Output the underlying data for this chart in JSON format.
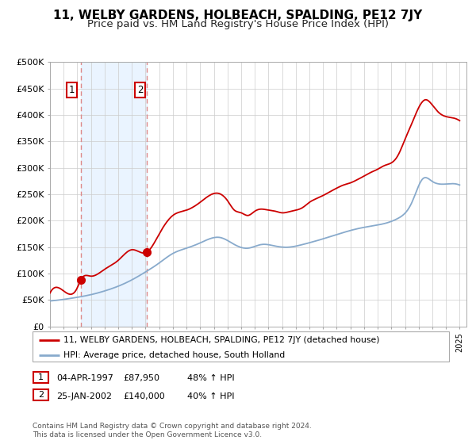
{
  "title": "11, WELBY GARDENS, HOLBEACH, SPALDING, PE12 7JY",
  "subtitle": "Price paid vs. HM Land Registry's House Price Index (HPI)",
  "ylim": [
    0,
    500000
  ],
  "yticks": [
    0,
    50000,
    100000,
    150000,
    200000,
    250000,
    300000,
    350000,
    400000,
    450000,
    500000
  ],
  "ytick_labels": [
    "£0",
    "£50K",
    "£100K",
    "£150K",
    "£200K",
    "£250K",
    "£300K",
    "£350K",
    "£400K",
    "£450K",
    "£500K"
  ],
  "xlim_start": 1995.0,
  "xlim_end": 2025.5,
  "sale1_date": 1997.25,
  "sale1_price": 87950,
  "sale2_date": 2002.07,
  "sale2_price": 140000,
  "legend_line1": "11, WELBY GARDENS, HOLBEACH, SPALDING, PE12 7JY (detached house)",
  "legend_line2": "HPI: Average price, detached house, South Holland",
  "footnote": "Contains HM Land Registry data © Crown copyright and database right 2024.\nThis data is licensed under the Open Government Licence v3.0.",
  "red_line_color": "#cc0000",
  "blue_line_color": "#88aacc",
  "sale_dot_color": "#cc0000",
  "vline_color": "#dd8888",
  "bg_shade_color": "#ddeeff",
  "grid_color": "#cccccc",
  "title_fontsize": 11,
  "subtitle_fontsize": 9.5,
  "hpi_keypoints": [
    [
      1995.0,
      48000
    ],
    [
      1996.0,
      51000
    ],
    [
      1997.0,
      55000
    ],
    [
      1998.0,
      60000
    ],
    [
      1999.0,
      67000
    ],
    [
      2000.0,
      76000
    ],
    [
      2001.0,
      88000
    ],
    [
      2002.0,
      103000
    ],
    [
      2003.0,
      120000
    ],
    [
      2004.0,
      138000
    ],
    [
      2005.0,
      148000
    ],
    [
      2006.0,
      158000
    ],
    [
      2007.5,
      168000
    ],
    [
      2008.5,
      155000
    ],
    [
      2009.5,
      148000
    ],
    [
      2010.5,
      155000
    ],
    [
      2011.5,
      152000
    ],
    [
      2012.5,
      150000
    ],
    [
      2013.5,
      155000
    ],
    [
      2014.5,
      162000
    ],
    [
      2015.5,
      170000
    ],
    [
      2016.5,
      178000
    ],
    [
      2017.5,
      185000
    ],
    [
      2018.5,
      190000
    ],
    [
      2019.5,
      195000
    ],
    [
      2020.5,
      205000
    ],
    [
      2021.5,
      235000
    ],
    [
      2022.3,
      280000
    ],
    [
      2023.0,
      275000
    ],
    [
      2024.0,
      270000
    ],
    [
      2025.0,
      268000
    ]
  ],
  "red_keypoints": [
    [
      1995.0,
      63000
    ],
    [
      1996.0,
      67000
    ],
    [
      1997.0,
      73000
    ],
    [
      1997.25,
      87950
    ],
    [
      1998.0,
      95000
    ],
    [
      1999.0,
      108000
    ],
    [
      2000.0,
      125000
    ],
    [
      2001.0,
      145000
    ],
    [
      2002.07,
      140000
    ],
    [
      2003.0,
      175000
    ],
    [
      2004.0,
      210000
    ],
    [
      2005.0,
      220000
    ],
    [
      2006.0,
      235000
    ],
    [
      2007.3,
      252000
    ],
    [
      2008.0,
      238000
    ],
    [
      2008.5,
      220000
    ],
    [
      2009.0,
      215000
    ],
    [
      2009.5,
      210000
    ],
    [
      2010.0,
      218000
    ],
    [
      2010.5,
      222000
    ],
    [
      2011.0,
      220000
    ],
    [
      2011.5,
      218000
    ],
    [
      2012.0,
      215000
    ],
    [
      2012.5,
      217000
    ],
    [
      2013.0,
      220000
    ],
    [
      2013.5,
      225000
    ],
    [
      2014.0,
      235000
    ],
    [
      2014.5,
      242000
    ],
    [
      2015.0,
      248000
    ],
    [
      2015.5,
      255000
    ],
    [
      2016.0,
      262000
    ],
    [
      2016.5,
      268000
    ],
    [
      2017.0,
      272000
    ],
    [
      2017.5,
      278000
    ],
    [
      2018.0,
      285000
    ],
    [
      2018.5,
      292000
    ],
    [
      2019.0,
      298000
    ],
    [
      2019.5,
      305000
    ],
    [
      2020.0,
      310000
    ],
    [
      2020.5,
      325000
    ],
    [
      2021.0,
      355000
    ],
    [
      2021.5,
      385000
    ],
    [
      2022.0,
      415000
    ],
    [
      2022.5,
      430000
    ],
    [
      2023.0,
      420000
    ],
    [
      2023.5,
      405000
    ],
    [
      2024.0,
      398000
    ],
    [
      2025.0,
      390000
    ]
  ]
}
